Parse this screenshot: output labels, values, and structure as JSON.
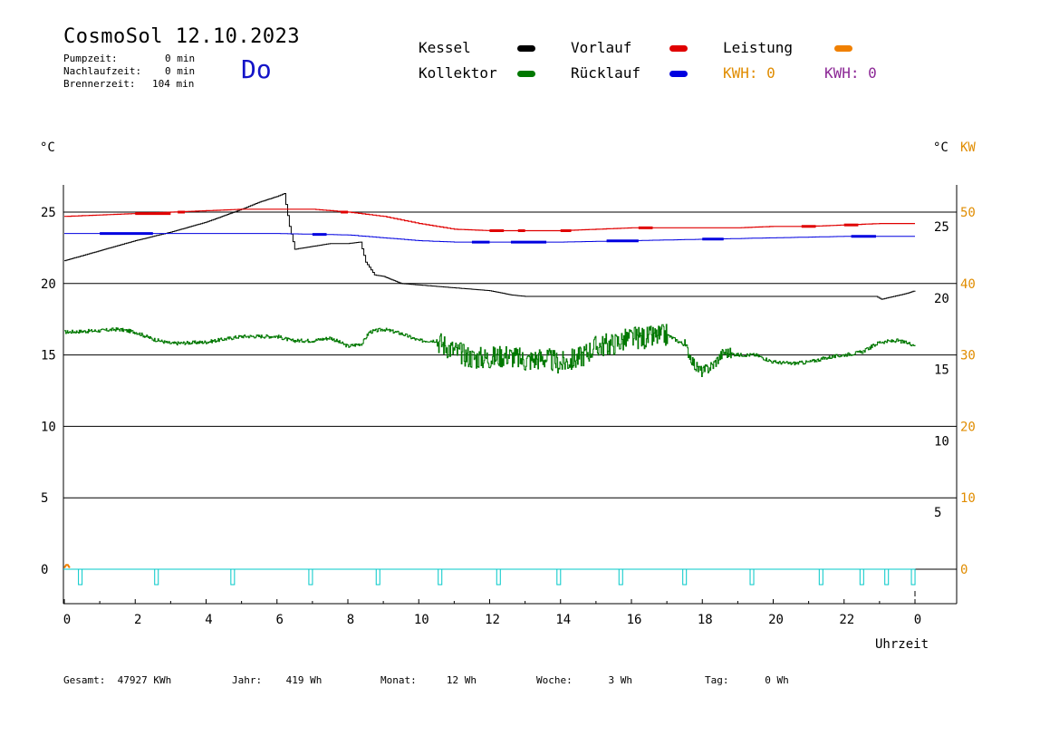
{
  "header": {
    "title": "CosmoSol 12.10.2023",
    "day": "Do",
    "stats": [
      {
        "label": "Pumpzeit:",
        "value": "0 min"
      },
      {
        "label": "Nachlaufzeit:",
        "value": "0 min"
      },
      {
        "label": "Brennerzeit:",
        "value": "104 min"
      }
    ]
  },
  "legend": {
    "items": [
      {
        "label": "Kessel",
        "color": "#000000"
      },
      {
        "label": "Vorlauf",
        "color": "#e00000"
      },
      {
        "label": "Leistung",
        "color": "#f08000"
      },
      {
        "label": "Kollektor",
        "color": "#007800"
      },
      {
        "label": "Rücklauf",
        "color": "#0000e0"
      }
    ],
    "kwh1": "KWH: 0",
    "kwh1_color": "#e08c00",
    "kwh2": "KWH: 0",
    "kwh2_color": "#8c2896"
  },
  "chart_data": {
    "type": "line",
    "x_label": "Uhrzeit",
    "x_range": [
      0,
      24
    ],
    "x_ticks": [
      "0",
      "2",
      "4",
      "6",
      "8",
      "10",
      "12",
      "14",
      "16",
      "18",
      "20",
      "22",
      "0"
    ],
    "y_left_label": "°C",
    "y_left_ticks": [
      "0",
      "5",
      "10",
      "15",
      "20",
      "25"
    ],
    "y_left_range": [
      -2.5,
      27.5
    ],
    "y_right1_label": "°C",
    "y_right1_ticks": [
      "5",
      "10",
      "15",
      "20",
      "25"
    ],
    "y_right2_label": "KW",
    "y_right2_ticks": [
      "0",
      "10",
      "20",
      "30",
      "40",
      "50"
    ],
    "right2_color": "#e08c00",
    "gridlines_y": [
      0,
      5,
      10,
      15,
      20,
      25
    ],
    "series": [
      {
        "name": "Kessel",
        "color": "#000000",
        "x": [
          0,
          1,
          2,
          3,
          4,
          5,
          5.5,
          6,
          6.1,
          6.2,
          6.35,
          6.5,
          7,
          7.5,
          8,
          8.35,
          8.5,
          8.75,
          9,
          9.5,
          10,
          11,
          12,
          12.6,
          13,
          15,
          18,
          20,
          22,
          22.9,
          23.05,
          23.4,
          23.75,
          24
        ],
        "y": [
          21.6,
          22.3,
          23.0,
          23.6,
          24.3,
          25.2,
          25.7,
          26.1,
          26.2,
          26.3,
          24.0,
          22.4,
          22.6,
          22.8,
          22.8,
          22.9,
          21.5,
          20.6,
          20.5,
          20.0,
          19.9,
          19.7,
          19.5,
          19.2,
          19.1,
          19.1,
          19.1,
          19.1,
          19.1,
          19.1,
          18.9,
          19.1,
          19.3,
          19.5
        ]
      },
      {
        "name": "Vorlauf",
        "color": "#e00000",
        "x": [
          0,
          1,
          2,
          3,
          4,
          5,
          6,
          7,
          8,
          9,
          10,
          11,
          12,
          13,
          14,
          15,
          16,
          17,
          18,
          19,
          20,
          21,
          22,
          23,
          24
        ],
        "y": [
          24.7,
          24.8,
          24.9,
          25.0,
          25.1,
          25.2,
          25.2,
          25.2,
          25.0,
          24.7,
          24.2,
          23.8,
          23.7,
          23.7,
          23.7,
          23.8,
          23.9,
          23.9,
          23.9,
          23.9,
          24.0,
          24.0,
          24.1,
          24.2,
          24.2
        ]
      },
      {
        "name": "Rücklauf",
        "color": "#0000e0",
        "x": [
          0,
          2,
          4,
          6,
          8,
          9,
          10,
          11,
          12,
          13,
          14,
          16,
          18,
          20,
          22,
          24
        ],
        "y": [
          23.5,
          23.5,
          23.5,
          23.5,
          23.4,
          23.2,
          23.0,
          22.9,
          22.9,
          22.9,
          22.9,
          23.0,
          23.1,
          23.2,
          23.3,
          23.3
        ]
      },
      {
        "name": "Kollektor",
        "color": "#007800",
        "x": [
          0,
          1,
          1.5,
          2,
          2.5,
          3,
          4,
          5,
          6,
          6.4,
          7,
          7.5,
          8,
          8.4,
          8.6,
          9,
          9.5,
          10,
          10.5,
          11,
          11.5,
          12,
          12.5,
          13,
          13.5,
          14,
          14.5,
          15,
          15.5,
          16,
          16.5,
          17,
          17.5,
          17.8,
          18,
          18.3,
          18.6,
          19,
          19.5,
          20,
          20.5,
          21,
          21.5,
          22,
          22.5,
          23,
          23.5,
          24
        ],
        "y": [
          16.6,
          16.7,
          16.8,
          16.6,
          16.1,
          15.8,
          15.9,
          16.3,
          16.3,
          16.0,
          16.0,
          16.2,
          15.6,
          15.8,
          16.6,
          16.8,
          16.5,
          16.0,
          16.0,
          15.3,
          14.8,
          14.8,
          15.0,
          14.6,
          14.8,
          14.4,
          14.8,
          15.6,
          15.8,
          16.2,
          16.2,
          16.4,
          15.7,
          14.2,
          13.8,
          14.3,
          15.2,
          15.0,
          15.0,
          14.5,
          14.4,
          14.5,
          14.8,
          15.0,
          15.2,
          15.9,
          16.0,
          15.7
        ]
      },
      {
        "name": "Leistung",
        "color": "#f08000",
        "x": [
          0,
          0.05,
          0.1,
          0.15
        ],
        "y": [
          0.1,
          0.3,
          0.3,
          0.1
        ]
      }
    ],
    "pump_pulses_hours": [
      0.45,
      2.6,
      4.75,
      6.95,
      8.85,
      10.6,
      12.25,
      13.95,
      15.7,
      17.5,
      19.4,
      21.35,
      22.5,
      23.2,
      23.95
    ],
    "pump_color": "#00c8c8"
  },
  "footer": [
    {
      "label": "Gesamt:",
      "value": "47927 KWh"
    },
    {
      "label": "Jahr:",
      "value": "419 Wh"
    },
    {
      "label": "Monat:",
      "value": "12 Wh"
    },
    {
      "label": "Woche:",
      "value": "3 Wh"
    },
    {
      "label": "Tag:",
      "value": "0 Wh"
    }
  ]
}
